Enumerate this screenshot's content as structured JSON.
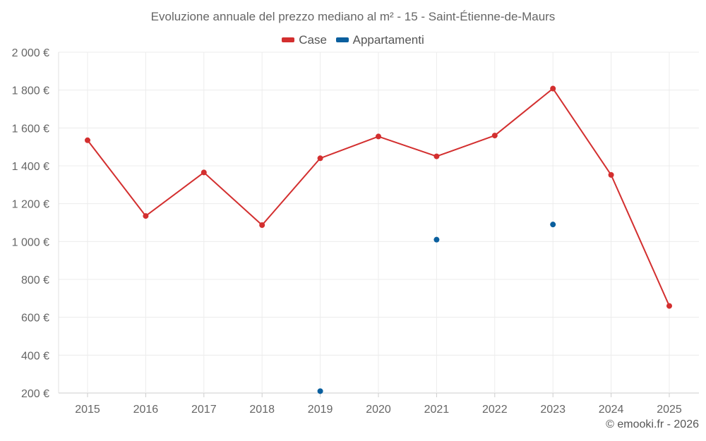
{
  "chart_data": {
    "type": "line",
    "title": "Evoluzione annuale del prezzo mediano al m² - 15 - Saint-Étienne-de-Maurs",
    "categories": [
      "2015",
      "2016",
      "2017",
      "2018",
      "2019",
      "2020",
      "2021",
      "2022",
      "2023",
      "2024",
      "2025"
    ],
    "series": [
      {
        "name": "Case",
        "color": "#d32f2f",
        "values": [
          1535,
          1135,
          1365,
          1087,
          1440,
          1555,
          1450,
          1560,
          1808,
          1352,
          660
        ]
      },
      {
        "name": "Appartamenti",
        "color": "#0a5f9e",
        "values": [
          null,
          null,
          null,
          null,
          210,
          null,
          1010,
          null,
          1090,
          null,
          null
        ]
      }
    ],
    "yticks": [
      "200 €",
      "400 €",
      "600 €",
      "800 €",
      "1 000 €",
      "1 200 €",
      "1 400 €",
      "1 600 €",
      "1 800 €",
      "2 000 €"
    ],
    "ytick_values": [
      200,
      400,
      600,
      800,
      1000,
      1200,
      1400,
      1600,
      1800,
      2000
    ],
    "ylim": [
      200,
      2000
    ],
    "xlabel": "",
    "ylabel": "",
    "grid": true,
    "legend_position": "top-center"
  },
  "footer": "© emooki.fr - 2026"
}
